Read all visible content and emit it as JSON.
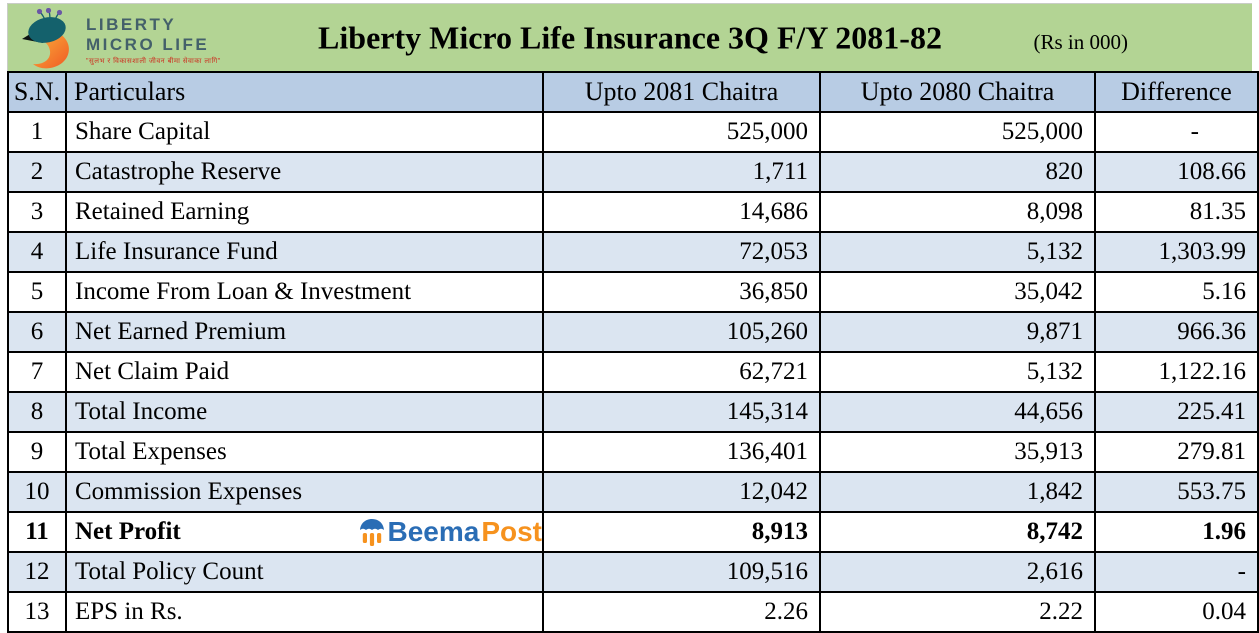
{
  "header": {
    "logo_line1": "LIBERTY",
    "logo_line2": "MICRO LIFE",
    "logo_tagline": "\"सुलभ र विकासशाली जीवन बीमा सेवाका लागि\"",
    "title": "Liberty Micro Life Insurance 3Q F/Y 2081-82",
    "unit_note": "(Rs in 000)"
  },
  "table": {
    "columns": [
      "S.N.",
      "Particulars",
      "Upto 2081 Chaitra",
      "Upto 2080 Chaitra",
      "Difference"
    ],
    "rows": [
      {
        "sn": "1",
        "particulars": "Share Capital",
        "v2081": "525,000",
        "v2080": "525,000",
        "diff": "-",
        "diff_class": "dash-indent"
      },
      {
        "sn": "2",
        "particulars": "Catastrophe Reserve",
        "v2081": "1,711",
        "v2080": "820",
        "diff": "108.66"
      },
      {
        "sn": "3",
        "particulars": "Retained Earning",
        "v2081": "14,686",
        "v2080": "8,098",
        "diff": "81.35"
      },
      {
        "sn": "4",
        "particulars": "Life Insurance Fund",
        "v2081": "72,053",
        "v2080": "5,132",
        "diff": "1,303.99"
      },
      {
        "sn": "5",
        "particulars": "Income From Loan & Investment",
        "v2081": "36,850",
        "v2080": "35,042",
        "diff": "5.16"
      },
      {
        "sn": "6",
        "particulars": "Net Earned Premium",
        "v2081": "105,260",
        "v2080": "9,871",
        "diff": "966.36"
      },
      {
        "sn": "7",
        "particulars": "Net Claim Paid",
        "v2081": "62,721",
        "v2080": "5,132",
        "diff": "1,122.16"
      },
      {
        "sn": "8",
        "particulars": "Total Income",
        "v2081": "145,314",
        "v2080": "44,656",
        "diff": "225.41"
      },
      {
        "sn": "9",
        "particulars": "Total Expenses",
        "v2081": "136,401",
        "v2080": "35,913",
        "diff": "279.81"
      },
      {
        "sn": "10",
        "particulars": "Commission Expenses",
        "v2081": "12,042",
        "v2080": "1,842",
        "diff": "553.75"
      },
      {
        "sn": "11",
        "particulars": "Net Profit",
        "v2081": "8,913",
        "v2080": "8,742",
        "diff": "1.96",
        "bold": true,
        "watermark": true
      },
      {
        "sn": "12",
        "particulars": "Total Policy Count",
        "v2081": "109,516",
        "v2080": "2,616",
        "diff": "-"
      },
      {
        "sn": "13",
        "particulars": "EPS in Rs.",
        "v2081": "2.26",
        "v2080": "2.22",
        "diff": "0.04"
      }
    ]
  },
  "watermark": {
    "part1": "Beema",
    "part2": "Post"
  },
  "colors": {
    "banner_green": "#b3d494",
    "header_blue": "#b8cce4",
    "stripe_blue": "#dbe5f1",
    "border_black": "#000000",
    "beema_blue": "#2a6db5",
    "beema_orange": "#f6921e",
    "logo_text_gray": "#44606a",
    "tagline_red": "#cc3322",
    "bird_teal": "#14616c",
    "bird_orange": "#f7941d",
    "crest_purple": "#6a57a5"
  }
}
